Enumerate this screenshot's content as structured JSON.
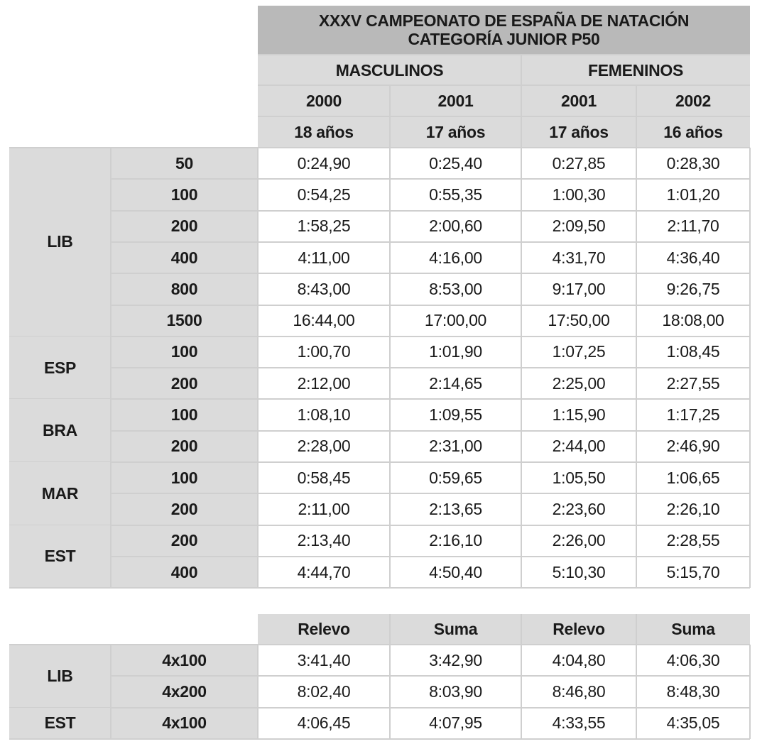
{
  "title_lines": [
    "XXXV CAMPEONATO DE ESPAÑA DE NATACIÓN",
    "CATEGORÍA JUNIOR P50"
  ],
  "genders": [
    "MASCULINOS",
    "FEMENINOS"
  ],
  "years": [
    "2000",
    "2001",
    "2001",
    "2002"
  ],
  "ages": [
    "18 años",
    "17 años",
    "17 años",
    "16 años"
  ],
  "individual": [
    {
      "style": "LIB",
      "rows": [
        {
          "distance": "50",
          "times": [
            "0:24,90",
            "0:25,40",
            "0:27,85",
            "0:28,30"
          ]
        },
        {
          "distance": "100",
          "times": [
            "0:54,25",
            "0:55,35",
            "1:00,30",
            "1:01,20"
          ]
        },
        {
          "distance": "200",
          "times": [
            "1:58,25",
            "2:00,60",
            "2:09,50",
            "2:11,70"
          ]
        },
        {
          "distance": "400",
          "times": [
            "4:11,00",
            "4:16,00",
            "4:31,70",
            "4:36,40"
          ]
        },
        {
          "distance": "800",
          "times": [
            "8:43,00",
            "8:53,00",
            "9:17,00",
            "9:26,75"
          ]
        },
        {
          "distance": "1500",
          "times": [
            "16:44,00",
            "17:00,00",
            "17:50,00",
            "18:08,00"
          ]
        }
      ]
    },
    {
      "style": "ESP",
      "rows": [
        {
          "distance": "100",
          "times": [
            "1:00,70",
            "1:01,90",
            "1:07,25",
            "1:08,45"
          ]
        },
        {
          "distance": "200",
          "times": [
            "2:12,00",
            "2:14,65",
            "2:25,00",
            "2:27,55"
          ]
        }
      ]
    },
    {
      "style": "BRA",
      "rows": [
        {
          "distance": "100",
          "times": [
            "1:08,10",
            "1:09,55",
            "1:15,90",
            "1:17,25"
          ]
        },
        {
          "distance": "200",
          "times": [
            "2:28,00",
            "2:31,00",
            "2:44,00",
            "2:46,90"
          ]
        }
      ]
    },
    {
      "style": "MAR",
      "rows": [
        {
          "distance": "100",
          "times": [
            "0:58,45",
            "0:59,65",
            "1:05,50",
            "1:06,65"
          ]
        },
        {
          "distance": "200",
          "times": [
            "2:11,00",
            "2:13,65",
            "2:23,60",
            "2:26,10"
          ]
        }
      ]
    },
    {
      "style": "EST",
      "rows": [
        {
          "distance": "200",
          "times": [
            "2:13,40",
            "2:16,10",
            "2:26,00",
            "2:28,55"
          ]
        },
        {
          "distance": "400",
          "times": [
            "4:44,70",
            "4:50,40",
            "5:10,30",
            "5:15,70"
          ]
        }
      ]
    }
  ],
  "relay_headers": [
    "Relevo",
    "Suma",
    "Relevo",
    "Suma"
  ],
  "relays": [
    {
      "style": "LIB",
      "rows": [
        {
          "distance": "4x100",
          "times": [
            "3:41,40",
            "3:42,90",
            "4:04,80",
            "4:06,30"
          ]
        },
        {
          "distance": "4x200",
          "times": [
            "8:02,40",
            "8:03,90",
            "8:46,80",
            "8:48,30"
          ]
        }
      ]
    },
    {
      "style": "EST",
      "rows": [
        {
          "distance": "4x100",
          "times": [
            "4:06,45",
            "4:07,95",
            "4:33,55",
            "4:35,05"
          ]
        }
      ]
    }
  ]
}
